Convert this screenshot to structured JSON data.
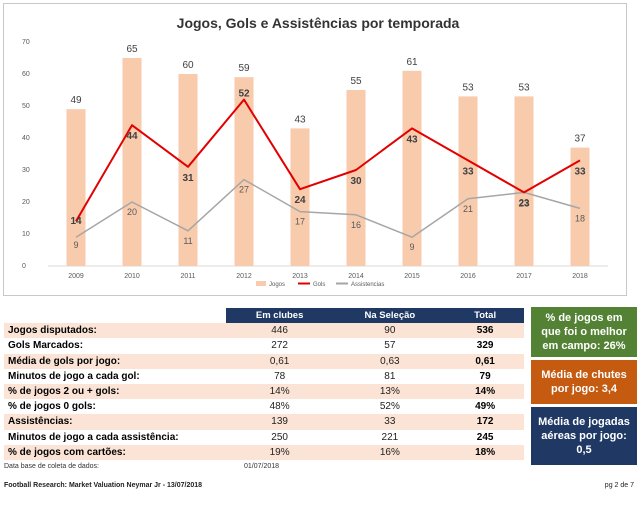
{
  "chart_data": {
    "type": "bar",
    "title": "Jogos, Gols e Assistências por temporada",
    "categories": [
      "2009",
      "2010",
      "2011",
      "2012",
      "2013",
      "2014",
      "2015",
      "2016",
      "2017",
      "2018"
    ],
    "ylim": [
      0,
      70
    ],
    "yticks": [
      0,
      10,
      20,
      30,
      40,
      50,
      60,
      70
    ],
    "grid": false,
    "legend_position": "bottom",
    "series": [
      {
        "name": "Jogos",
        "kind": "bar",
        "color": "#f8cbad",
        "values": [
          49,
          65,
          60,
          59,
          43,
          55,
          61,
          53,
          53,
          37
        ]
      },
      {
        "name": "Gols",
        "kind": "line",
        "color": "#e30000",
        "values": [
          14,
          44,
          31,
          52,
          24,
          30,
          43,
          33,
          23,
          33
        ]
      },
      {
        "name": "Assistencias",
        "kind": "line",
        "color": "#a6a6a6",
        "values": [
          9,
          20,
          11,
          27,
          17,
          16,
          9,
          21,
          23,
          18
        ]
      }
    ]
  },
  "table": {
    "headers": [
      "",
      "Em clubes",
      "Na Seleção",
      "Total"
    ],
    "rows": [
      {
        "label": "Jogos disputados:",
        "clubes": "446",
        "selecao": "90",
        "total": "536"
      },
      {
        "label": "Gols Marcados:",
        "clubes": "272",
        "selecao": "57",
        "total": "329"
      },
      {
        "label": "Média de gols por jogo:",
        "clubes": "0,61",
        "selecao": "0,63",
        "total": "0,61"
      },
      {
        "label": "Minutos de jogo a cada gol:",
        "clubes": "78",
        "selecao": "81",
        "total": "79"
      },
      {
        "label": "% de jogos 2 ou + gols:",
        "clubes": "14%",
        "selecao": "13%",
        "total": "14%"
      },
      {
        "label": "% de jogos 0 gols:",
        "clubes": "48%",
        "selecao": "52%",
        "total": "49%"
      },
      {
        "label": "Assistências:",
        "clubes": "139",
        "selecao": "33",
        "total": "172"
      },
      {
        "label": "Minutos de jogo a cada assistência:",
        "clubes": "250",
        "selecao": "221",
        "total": "245"
      },
      {
        "label": "% de jogos com cartões:",
        "clubes": "19%",
        "selecao": "16%",
        "total": "18%"
      }
    ]
  },
  "side_boxes": {
    "green": "% de jogos em que foi o melhor em campo: 26%",
    "orange": "Média de chutes por jogo: 3,4",
    "navy": "Média de jogadas aéreas por jogo: 0,5"
  },
  "date_label": "Data base de coleta de dados:",
  "date_value": "01/07/2018",
  "footer_left": "Football Research: Market Valuation Neymar Jr - 13/07/2018",
  "footer_right": "pg 2 de 7"
}
